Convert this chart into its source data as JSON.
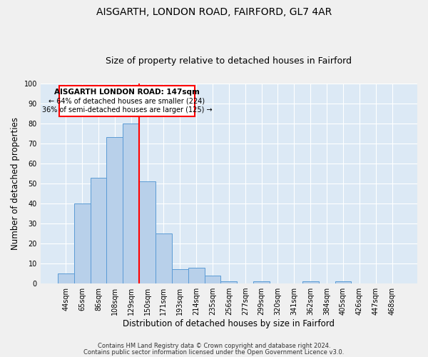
{
  "title": "AISGARTH, LONDON ROAD, FAIRFORD, GL7 4AR",
  "subtitle": "Size of property relative to detached houses in Fairford",
  "xlabel": "Distribution of detached houses by size in Fairford",
  "ylabel": "Number of detached properties",
  "bar_labels": [
    "44sqm",
    "65sqm",
    "86sqm",
    "108sqm",
    "129sqm",
    "150sqm",
    "171sqm",
    "193sqm",
    "214sqm",
    "235sqm",
    "256sqm",
    "277sqm",
    "299sqm",
    "320sqm",
    "341sqm",
    "362sqm",
    "384sqm",
    "405sqm",
    "426sqm",
    "447sqm",
    "468sqm"
  ],
  "bar_values": [
    5,
    40,
    53,
    73,
    80,
    51,
    25,
    7,
    8,
    4,
    1,
    0,
    1,
    0,
    0,
    1,
    0,
    1,
    0,
    0,
    0
  ],
  "bar_color": "#b8d0ea",
  "bar_edge_color": "#5b9bd5",
  "vline_color": "red",
  "vline_index": 4.5,
  "annotation_title": "AISGARTH LONDON ROAD: 147sqm",
  "annotation_line1": "← 64% of detached houses are smaller (224)",
  "annotation_line2": "36% of semi-detached houses are larger (125) →",
  "annotation_box_color": "#ffffff",
  "annotation_box_edge": "red",
  "ylim": [
    0,
    100
  ],
  "yticks": [
    0,
    10,
    20,
    30,
    40,
    50,
    60,
    70,
    80,
    90,
    100
  ],
  "footer1": "Contains HM Land Registry data © Crown copyright and database right 2024.",
  "footer2": "Contains public sector information licensed under the Open Government Licence v3.0.",
  "plot_bg_color": "#dce9f5",
  "fig_bg_color": "#f0f0f0",
  "title_fontsize": 10,
  "subtitle_fontsize": 9,
  "axis_label_fontsize": 8.5,
  "tick_fontsize": 7,
  "footer_fontsize": 6,
  "ann_title_fontsize": 7.5,
  "ann_text_fontsize": 7
}
